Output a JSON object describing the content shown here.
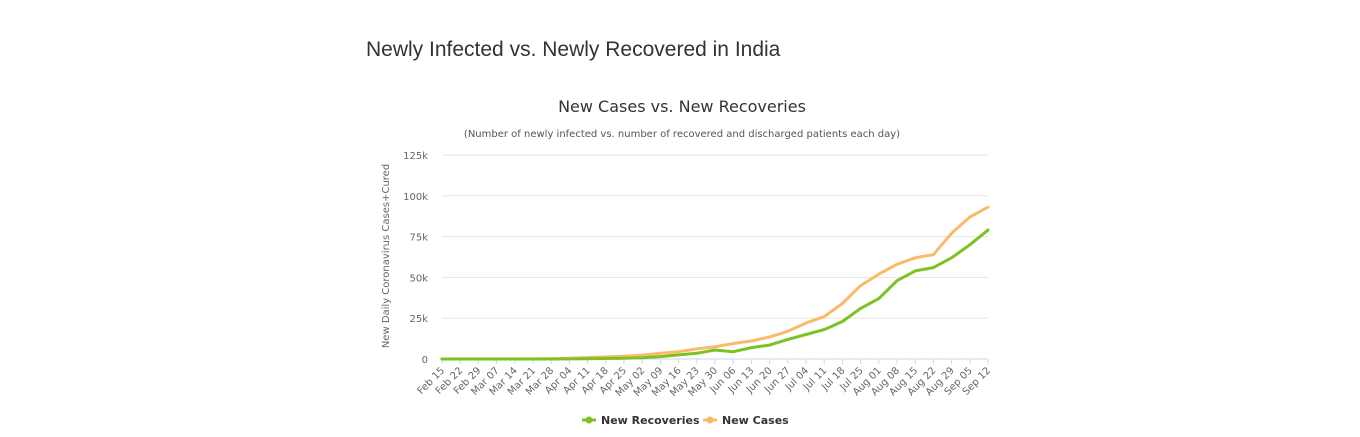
{
  "page": {
    "heading": "Newly Infected vs. Newly Recovered in India"
  },
  "chart_data": {
    "type": "line",
    "title": "New Cases vs. New Recoveries",
    "subtitle": "(Number of newly infected vs. number of recovered and discharged patients each day)",
    "ylabel": "New Daily Coronavirus Cases+Cured",
    "xlabel": "",
    "ylim": [
      0,
      125000
    ],
    "yticks": [
      0,
      25000,
      50000,
      75000,
      100000,
      125000
    ],
    "ytick_labels": [
      "0",
      "25k",
      "50k",
      "75k",
      "100k",
      "125k"
    ],
    "categories": [
      "Feb 15",
      "Feb 22",
      "Feb 29",
      "Mar 07",
      "Mar 14",
      "Mar 21",
      "Mar 28",
      "Apr 04",
      "Apr 11",
      "Apr 18",
      "Apr 25",
      "May 02",
      "May 09",
      "May 16",
      "May 23",
      "May 30",
      "Jun 06",
      "Jun 13",
      "Jun 20",
      "Jun 27",
      "Jul 04",
      "Jul 11",
      "Jul 18",
      "Jul 25",
      "Aug 01",
      "Aug 08",
      "Aug 15",
      "Aug 22",
      "Aug 29",
      "Sep 05",
      "Sep 12"
    ],
    "grid": true,
    "legend_position": "bottom-center",
    "series": [
      {
        "name": "New Recoveries",
        "color": "#7cc222",
        "values": [
          0,
          0,
          0,
          0,
          0,
          10,
          20,
          50,
          150,
          300,
          500,
          800,
          1500,
          2500,
          3500,
          5500,
          4500,
          7000,
          8500,
          12000,
          15000,
          18000,
          23000,
          31000,
          37000,
          48000,
          54000,
          56000,
          62000,
          70000,
          79000
        ]
      },
      {
        "name": "New Cases",
        "color": "#f9bb6a",
        "values": [
          0,
          0,
          0,
          0,
          0,
          50,
          150,
          400,
          900,
          1300,
          1700,
          2400,
          3500,
          4500,
          6200,
          7500,
          9500,
          11000,
          13500,
          17000,
          22000,
          26000,
          34000,
          45000,
          52000,
          58000,
          62000,
          64000,
          77000,
          87000,
          93000
        ]
      }
    ]
  }
}
